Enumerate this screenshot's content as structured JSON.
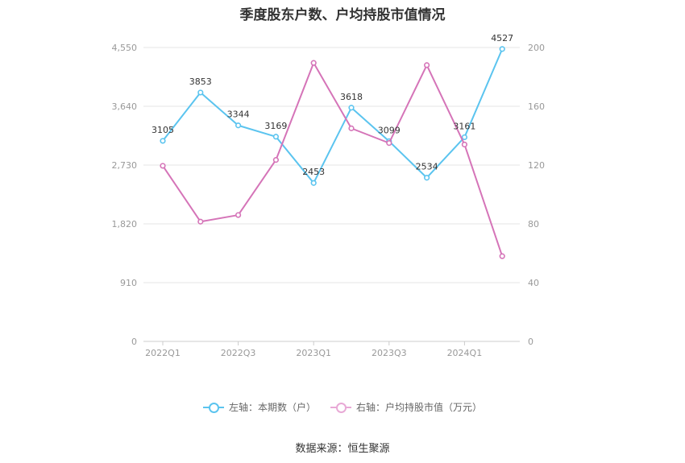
{
  "title": "季度股东户数、户均持股市值情况",
  "source": "数据来源：恒生聚源",
  "legend": {
    "left": "左轴：本期数（户）",
    "right": "右轴：户均持股市值（万元）"
  },
  "colors": {
    "left_series": "#5bc4ef",
    "right_series": "#d574b8",
    "grid": "#e6e6e6",
    "axis_text": "#999999"
  },
  "chart_data": {
    "type": "line",
    "title": "季度股东户数、户均持股市值情况",
    "categories": [
      "2022Q1",
      "2022Q2",
      "2022Q3",
      "2022Q4",
      "2023Q1",
      "2023Q2",
      "2023Q3",
      "2023Q4",
      "2024Q1",
      "2024Q2"
    ],
    "x_tick_labels": [
      "2022Q1",
      "",
      "2022Q3",
      "",
      "2023Q1",
      "",
      "2023Q3",
      "",
      "2024Q1",
      ""
    ],
    "y_left": {
      "min": 0,
      "max": 4550,
      "ticks": [
        "0",
        "910",
        "1,820",
        "2,730",
        "3,640",
        "4,550"
      ]
    },
    "y_right": {
      "min": 0,
      "max": 200,
      "ticks": [
        "0",
        "40",
        "80",
        "120",
        "160",
        "200"
      ]
    },
    "grid": true,
    "legend_position": "bottom",
    "series": [
      {
        "name": "左轴：本期数（户）",
        "axis": "left",
        "values": [
          3105,
          3853,
          3344,
          3169,
          2453,
          3618,
          3099,
          2534,
          3161,
          4527
        ],
        "labels": [
          "3105",
          "3853",
          "3344",
          "3169",
          "2453",
          "3618",
          "3099",
          "2534",
          "3161",
          "4527"
        ]
      },
      {
        "name": "右轴：户均持股市值（万元）",
        "axis": "right",
        "values": [
          119.5,
          81.5,
          86,
          123.5,
          189.5,
          145,
          135,
          188,
          134,
          58
        ]
      }
    ]
  }
}
